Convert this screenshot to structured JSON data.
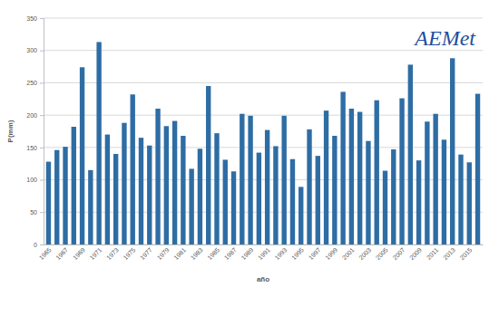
{
  "chart_data": {
    "type": "bar",
    "x_label": "año",
    "y_label": "P(mm)",
    "annotations": [
      "AEMet"
    ],
    "categories": [
      "1965",
      null,
      "1967",
      null,
      "1969",
      null,
      "1971",
      null,
      "1973",
      null,
      "1975",
      null,
      "1977",
      null,
      "1979",
      null,
      "1981",
      null,
      "1983",
      null,
      "1985",
      null,
      "1987",
      null,
      "1989",
      null,
      "1991",
      null,
      "1993",
      null,
      "1995",
      null,
      "1997",
      null,
      "1999",
      null,
      "2001",
      null,
      "2003",
      null,
      "2005",
      null,
      "2007",
      null,
      "2009",
      null,
      "2011",
      null,
      "2013",
      null,
      "2015",
      null
    ],
    "values": [
      128,
      146,
      151,
      182,
      274,
      115,
      313,
      170,
      140,
      188,
      232,
      165,
      153,
      210,
      183,
      191,
      168,
      117,
      148,
      245,
      172,
      131,
      113,
      202,
      199,
      142,
      177,
      152,
      199,
      132,
      89,
      178,
      137,
      207,
      168,
      236,
      210,
      205,
      160,
      223,
      114,
      147,
      226,
      278,
      130,
      190,
      202,
      162,
      288,
      139,
      127,
      233
    ],
    "color": "#2e6da4",
    "ylim": [
      0,
      350
    ],
    "yticks": [
      0,
      50,
      100,
      150,
      200,
      250,
      300,
      350
    ],
    "grid": true
  }
}
